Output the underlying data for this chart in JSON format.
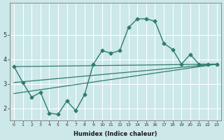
{
  "xlabel": "Humidex (Indice chaleur)",
  "bg_color": "#cce8e8",
  "grid_color": "#ffffff",
  "line_color": "#2e7d6e",
  "x_ticks": [
    0,
    1,
    2,
    3,
    4,
    5,
    6,
    7,
    8,
    9,
    10,
    11,
    12,
    13,
    14,
    15,
    16,
    17,
    18,
    19,
    20,
    21,
    22,
    23
  ],
  "ylim": [
    1.5,
    6.3
  ],
  "xlim": [
    -0.5,
    23.5
  ],
  "main_line_x": [
    0,
    1,
    2,
    3,
    4,
    5,
    6,
    7,
    8,
    9,
    10,
    11,
    12,
    13,
    14,
    15,
    16,
    17,
    18,
    19,
    20,
    21,
    22,
    23
  ],
  "main_line_y": [
    3.7,
    3.05,
    2.45,
    2.65,
    1.8,
    1.75,
    2.3,
    1.9,
    2.55,
    3.8,
    4.35,
    4.25,
    4.35,
    5.3,
    5.65,
    5.65,
    5.55,
    4.65,
    4.4,
    3.8,
    4.2,
    3.8,
    3.8,
    3.8
  ],
  "upper_line_x": [
    0,
    23
  ],
  "upper_line_y": [
    3.7,
    3.8
  ],
  "lower_line_x": [
    0,
    23
  ],
  "lower_line_y": [
    2.6,
    3.8
  ],
  "mid_line_x": [
    0,
    23
  ],
  "mid_line_y": [
    3.05,
    3.8
  ],
  "y_ticks": [
    2,
    3,
    4,
    5
  ],
  "y_tick_labels": [
    "2",
    "3",
    "4",
    "5"
  ]
}
